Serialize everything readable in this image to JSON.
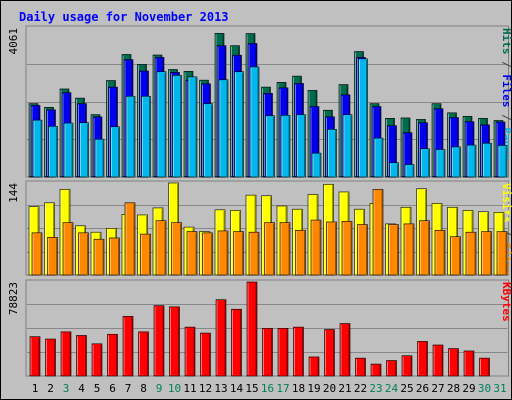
{
  "chart_data": {
    "type": "bar",
    "title": "Daily usage for November 2013",
    "categories": [
      "1",
      "2",
      "3",
      "4",
      "5",
      "6",
      "7",
      "8",
      "9",
      "10",
      "11",
      "12",
      "13",
      "14",
      "15",
      "16",
      "17",
      "18",
      "19",
      "20",
      "21",
      "22",
      "23",
      "24",
      "25",
      "26",
      "27",
      "28",
      "29",
      "30",
      "31"
    ],
    "weekend_days": [
      "3",
      "9",
      "10",
      "16",
      "17",
      "23",
      "24",
      "30",
      "31"
    ],
    "panels": [
      {
        "id": "hits_files_pages",
        "max_label": "4061",
        "ylim": [
          0,
          4061
        ],
        "series": [
          {
            "name": "Hits",
            "color": "#006c4e",
            "values": [
              2000,
              1900,
              2400,
              2150,
              1700,
              2630,
              3340,
              3070,
              3325,
              2930,
              2880,
              2640,
              3915,
              3580,
              3910,
              2450,
              2580,
              2750,
              2360,
              1820,
              2520,
              3420,
              2000,
              1600,
              1610,
              1570,
              2000,
              1750,
              1655,
              1600,
              1540
            ]
          },
          {
            "name": "Files",
            "color": "#0000ee",
            "values": [
              1950,
              1830,
              2300,
              2000,
              1640,
              2450,
              3200,
              2890,
              3260,
              2850,
              2640,
              2540,
              3580,
              3320,
              3640,
              2280,
              2430,
              2550,
              1920,
              1640,
              2240,
              3260,
              1920,
              1400,
              1210,
              1480,
              1860,
              1620,
              1510,
              1420,
              1500
            ]
          },
          {
            "name": "Pages",
            "color": "#00b8ee",
            "values": [
              1550,
              1380,
              1470,
              1480,
              1030,
              1370,
              2200,
              2200,
              2870,
              2770,
              2730,
              2000,
              2650,
              2870,
              3000,
              1670,
              1680,
              1700,
              650,
              1300,
              1700,
              3220,
              1060,
              390,
              340,
              770,
              750,
              820,
              870,
              920,
              860
            ]
          }
        ],
        "axis_label_parts": [
          {
            "text": "Pages",
            "color": "#00b8ee"
          },
          {
            "text": " / ",
            "color": "#444444"
          },
          {
            "text": "Files",
            "color": "#0000ee"
          },
          {
            "text": " / ",
            "color": "#444444"
          },
          {
            "text": "Hits",
            "color": "#006c4e"
          }
        ]
      },
      {
        "id": "visits_sites",
        "max_label": "144",
        "ylim": [
          0,
          144
        ],
        "series": [
          {
            "name": "Visits",
            "color": "#ffff00",
            "values": [
              107,
              113,
              134,
              77,
              67,
              73,
              95,
              94,
              105,
              144,
              75,
              68,
              102,
              101,
              125,
              124,
              108,
              103,
              126,
              142,
              130,
              103,
              112,
              80,
              106,
              135,
              112,
              106,
              101,
              99,
              98
            ]
          },
          {
            "name": "Sites",
            "color": "#ff8800",
            "values": [
              66,
              59,
              82,
              66,
              56,
              58,
              113,
              64,
              85,
              82,
              68,
              66,
              69,
              68,
              67,
              82,
              82,
              70,
              86,
              83,
              84,
              79,
              134,
              79,
              80,
              85,
              70,
              60,
              67,
              68,
              68
            ]
          }
        ],
        "axis_label_parts": [
          {
            "text": "Sites",
            "color": "#ff8800"
          },
          {
            "text": " / ",
            "color": "#444444"
          },
          {
            "text": "Visits",
            "color": "#ffff00"
          }
        ]
      },
      {
        "id": "kbytes",
        "max_label": "78823",
        "ylim": [
          0,
          78823
        ],
        "series": [
          {
            "name": "KBytes",
            "color": "#ff0000",
            "values": [
              33000,
              31000,
              37000,
              34000,
              27000,
              35000,
              50000,
              37000,
              59000,
              58000,
              41000,
              36000,
              64000,
              56000,
              78823,
              40000,
              40000,
              41000,
              16000,
              39000,
              44000,
              15000,
              10000,
              13000,
              17000,
              29000,
              26000,
              23000,
              21000,
              15000,
              0
            ]
          }
        ],
        "axis_label_parts": [
          {
            "text": "KBytes",
            "color": "#ff0000"
          }
        ]
      }
    ]
  }
}
